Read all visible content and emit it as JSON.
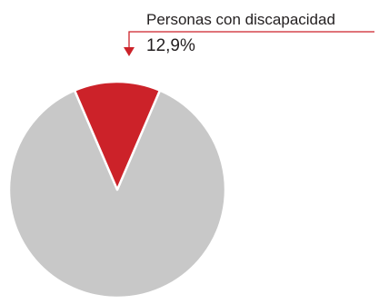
{
  "chart_data": {
    "type": "pie",
    "title": "",
    "slices": [
      {
        "label": "Personas con discapacidad",
        "value": 12.9,
        "display": "12,9%",
        "color": "#cc2229",
        "annotated": true
      },
      {
        "label": "",
        "value": 87.1,
        "display": "",
        "color": "#c8c8c8",
        "annotated": false
      }
    ],
    "slice_border_color": "#ffffff",
    "annotation_line_color": "#cc2229",
    "legend": "none"
  }
}
